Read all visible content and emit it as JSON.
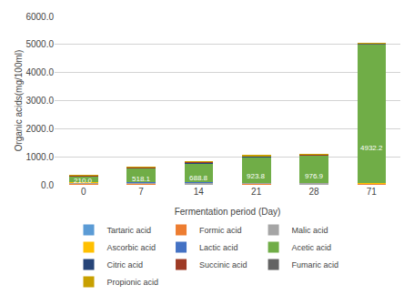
{
  "chart_data": {
    "type": "bar",
    "stacked": true,
    "xlabel": "Fermentation period (Day)",
    "ylabel": "Organic acids(mg/100ml)",
    "categories": [
      "0",
      "7",
      "14",
      "21",
      "28",
      "71"
    ],
    "series": [
      {
        "name": "Tartaric acid",
        "color": "#5B9BD5",
        "values": [
          2,
          2,
          2,
          2,
          2,
          2
        ]
      },
      {
        "name": "Formic acid",
        "color": "#ED7D31",
        "values": [
          40,
          35,
          30,
          35,
          30,
          35
        ]
      },
      {
        "name": "Malic acid",
        "color": "#A5A5A5",
        "values": [
          55,
          45,
          40,
          40,
          35,
          25
        ]
      },
      {
        "name": "Ascorbic acid",
        "color": "#FFC000",
        "values": [
          2,
          2,
          2,
          2,
          2,
          5
        ]
      },
      {
        "name": "Lactic acid",
        "color": "#4472C4",
        "values": [
          2,
          2,
          10,
          2,
          2,
          2
        ]
      },
      {
        "name": "Acetic acid",
        "color": "#70AD47",
        "values": [
          210,
          518.1,
          688.8,
          923.8,
          976.9,
          4932.2
        ],
        "data_labels": true,
        "value_labels": [
          "210.0",
          "518.1",
          "688.8",
          "923.8",
          "976.9",
          "4932.2"
        ]
      },
      {
        "name": "Citric acid",
        "color": "#264478",
        "values": [
          2,
          5,
          20,
          2,
          2,
          2
        ]
      },
      {
        "name": "Succinic acid",
        "color": "#9E3B26",
        "values": [
          30,
          25,
          28,
          28,
          25,
          22
        ]
      },
      {
        "name": "Fumaric acid",
        "color": "#636363",
        "values": [
          2,
          2,
          2,
          2,
          2,
          2
        ]
      },
      {
        "name": "Propionic acid",
        "color": "#C8A000",
        "values": [
          5,
          8,
          8,
          8,
          8,
          10
        ]
      }
    ],
    "ylim": [
      0,
      6000
    ],
    "yticks": [
      {
        "value": 0,
        "label": "0.0"
      },
      {
        "value": 1000,
        "label": "1000.0"
      },
      {
        "value": 2000,
        "label": "2000.0"
      },
      {
        "value": 3000,
        "label": "3000.0"
      },
      {
        "value": 4000,
        "label": "4000.0"
      },
      {
        "value": 5000,
        "label": "5000.0"
      },
      {
        "value": 6000,
        "label": "6000.0"
      }
    ],
    "grid": true,
    "legend": "bottom"
  }
}
